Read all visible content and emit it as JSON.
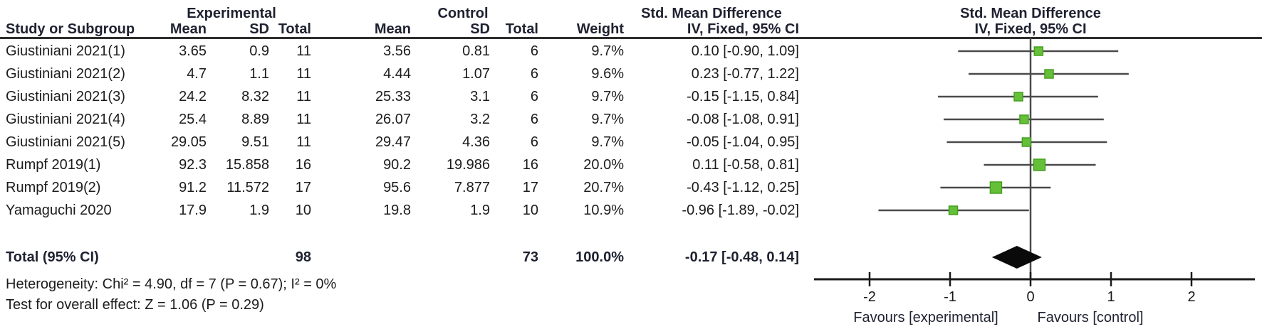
{
  "colors": {
    "marker_fill": "#66bf39",
    "marker_border": "#44a01e",
    "ci_line": "#4a4a4a",
    "axis": "#1a1a1a",
    "diamond": "#0a0a0a",
    "text": "#1c1c1c"
  },
  "table": {
    "group_headers": {
      "experimental": "Experimental",
      "control": "Control",
      "smd": "Std. Mean Difference"
    },
    "column_headers": {
      "study": "Study or Subgroup",
      "mean": "Mean",
      "sd": "SD",
      "total": "Total",
      "weight": "Weight",
      "iv": "IV, Fixed, 95% CI"
    },
    "total_row": {
      "label": "Total (95% CI)",
      "exp_total": "98",
      "ctrl_total": "73",
      "weight": "100.0%",
      "iv_label": "-0.17 [-0.48, 0.14]"
    },
    "heterogeneity": "Heterogeneity: Chi² = 4.90, df = 7 (P = 0.67); I² = 0%",
    "overall_effect": "Test for overall effect: Z = 1.06 (P = 0.29)"
  },
  "chart_data": {
    "type": "scatter",
    "subtype": "forest-plot",
    "title": "Std. Mean Difference",
    "effect_model": "IV, Fixed, 95% CI",
    "studies": [
      {
        "name": "Giustiniani 2021(1)",
        "exp_mean": "3.65",
        "exp_sd": "0.9",
        "exp_total": "11",
        "ctrl_mean": "3.56",
        "ctrl_sd": "0.81",
        "ctrl_total": "6",
        "weight": "9.7%",
        "weight_pct": 9.7,
        "smd": 0.1,
        "ci_low": -0.9,
        "ci_high": 1.09,
        "iv_label": "0.10 [-0.90, 1.09]"
      },
      {
        "name": "Giustiniani 2021(2)",
        "exp_mean": "4.7",
        "exp_sd": "1.1",
        "exp_total": "11",
        "ctrl_mean": "4.44",
        "ctrl_sd": "1.07",
        "ctrl_total": "6",
        "weight": "9.6%",
        "weight_pct": 9.6,
        "smd": 0.23,
        "ci_low": -0.77,
        "ci_high": 1.22,
        "iv_label": "0.23 [-0.77, 1.22]"
      },
      {
        "name": "Giustiniani 2021(3)",
        "exp_mean": "24.2",
        "exp_sd": "8.32",
        "exp_total": "11",
        "ctrl_mean": "25.33",
        "ctrl_sd": "3.1",
        "ctrl_total": "6",
        "weight": "9.7%",
        "weight_pct": 9.7,
        "smd": -0.15,
        "ci_low": -1.15,
        "ci_high": 0.84,
        "iv_label": "-0.15 [-1.15, 0.84]"
      },
      {
        "name": "Giustiniani 2021(4)",
        "exp_mean": "25.4",
        "exp_sd": "8.89",
        "exp_total": "11",
        "ctrl_mean": "26.07",
        "ctrl_sd": "3.2",
        "ctrl_total": "6",
        "weight": "9.7%",
        "weight_pct": 9.7,
        "smd": -0.08,
        "ci_low": -1.08,
        "ci_high": 0.91,
        "iv_label": "-0.08 [-1.08, 0.91]"
      },
      {
        "name": "Giustiniani 2021(5)",
        "exp_mean": "29.05",
        "exp_sd": "9.51",
        "exp_total": "11",
        "ctrl_mean": "29.47",
        "ctrl_sd": "4.36",
        "ctrl_total": "6",
        "weight": "9.7%",
        "weight_pct": 9.7,
        "smd": -0.05,
        "ci_low": -1.04,
        "ci_high": 0.95,
        "iv_label": "-0.05 [-1.04, 0.95]"
      },
      {
        "name": "Rumpf 2019(1)",
        "exp_mean": "92.3",
        "exp_sd": "15.858",
        "exp_total": "16",
        "ctrl_mean": "90.2",
        "ctrl_sd": "19.986",
        "ctrl_total": "16",
        "weight": "20.0%",
        "weight_pct": 20.0,
        "smd": 0.11,
        "ci_low": -0.58,
        "ci_high": 0.81,
        "iv_label": "0.11 [-0.58, 0.81]"
      },
      {
        "name": "Rumpf 2019(2)",
        "exp_mean": "91.2",
        "exp_sd": "11.572",
        "exp_total": "17",
        "ctrl_mean": "95.6",
        "ctrl_sd": "7.877",
        "ctrl_total": "17",
        "weight": "20.7%",
        "weight_pct": 20.7,
        "smd": -0.43,
        "ci_low": -1.12,
        "ci_high": 0.25,
        "iv_label": "-0.43 [-1.12, 0.25]"
      },
      {
        "name": "Yamaguchi 2020",
        "exp_mean": "17.9",
        "exp_sd": "1.9",
        "exp_total": "10",
        "ctrl_mean": "19.8",
        "ctrl_sd": "1.9",
        "ctrl_total": "10",
        "weight": "10.9%",
        "weight_pct": 10.9,
        "smd": -0.96,
        "ci_low": -1.89,
        "ci_high": -0.02,
        "iv_label": "-0.96 [-1.89, -0.02]"
      }
    ],
    "total": {
      "smd": -0.17,
      "ci_low": -0.48,
      "ci_high": 0.14
    },
    "x_axis": {
      "ticks": [
        "-2",
        "-1",
        "0",
        "1",
        "2"
      ],
      "tick_values": [
        -2,
        -1,
        0,
        1,
        2
      ],
      "range": [
        -2.7,
        2.85
      ],
      "label_left": "Favours [experimental]",
      "label_right": "Favours [control]"
    }
  }
}
